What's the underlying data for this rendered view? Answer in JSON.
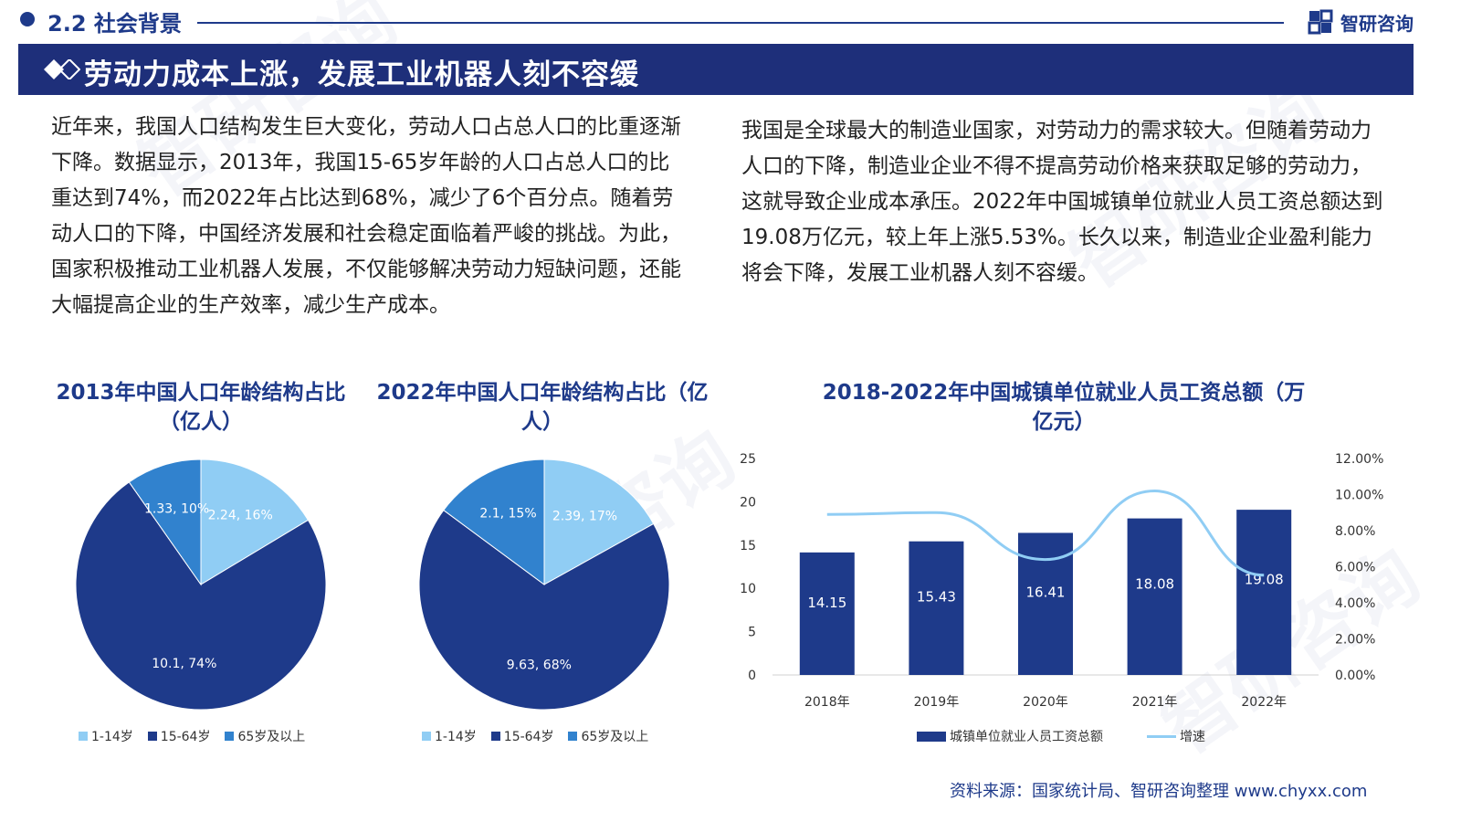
{
  "header": {
    "section_title": "2.2 社会背景",
    "brand_name": "智研咨询",
    "banner_title": "劳动力成本上涨，发展工业机器人刻不容缓"
  },
  "paragraphs": {
    "left": "近年来，我国人口结构发生巨大变化，劳动人口占总人口的比重逐渐下降。数据显示，2013年，我国15-65岁年龄的人口占总人口的比重达到74%，而2022年占比达到68%，减少了6个百分点。随着劳动人口的下降，中国经济发展和社会稳定面临着严峻的挑战。为此，国家积极推动工业机器人发展，不仅能够解决劳动力短缺问题，还能大幅提高企业的生产效率，减少生产成本。",
    "right": "我国是全球最大的制造业国家，对劳动力的需求较大。但随着劳动力人口的下降，制造业企业不得不提高劳动价格来获取足够的劳动力，这就导致企业成本承压。2022年中国城镇单位就业人员工资总额达到19.08万亿元，较上年上涨5.53%。长久以来，制造业企业盈利能力将会下降，发展工业机器人刻不容缓。"
  },
  "source": "资料来源：国家统计局、智研咨询整理  www.chyxx.com",
  "colors": {
    "navy": "#1e3a8a",
    "pie_light": "#90cdf4",
    "pie_dark": "#1e3a8a",
    "pie_mid": "#3182ce",
    "bar": "#1e3a8a",
    "line": "#90cdf4"
  },
  "chart_data": [
    {
      "type": "pie",
      "title": "2013年中国人口年龄结构占比（亿人）",
      "slices": [
        {
          "name": "1-14岁",
          "value": 2.24,
          "percent": 16,
          "label": "2.24, 16%"
        },
        {
          "name": "15-64岁",
          "value": 10.1,
          "percent": 74,
          "label": "10.1, 74%"
        },
        {
          "name": "65岁及以上",
          "value": 1.33,
          "percent": 10,
          "label": "1.33, 10%"
        }
      ],
      "legend": [
        "1-14岁",
        "15-64岁",
        "65岁及以上"
      ],
      "legend_position": "bottom"
    },
    {
      "type": "pie",
      "title": "2022年中国人口年龄结构占比（亿人）",
      "slices": [
        {
          "name": "1-14岁",
          "value": 2.39,
          "percent": 17,
          "label": "2.39, 17%"
        },
        {
          "name": "15-64岁",
          "value": 9.63,
          "percent": 68,
          "label": "9.63, 68%"
        },
        {
          "name": "65岁及以上",
          "value": 2.1,
          "percent": 15,
          "label": "2.1, 15%"
        }
      ],
      "legend": [
        "1-14岁",
        "15-64岁",
        "65岁及以上"
      ],
      "legend_position": "bottom"
    },
    {
      "type": "bar",
      "title": "2018-2022年中国城镇单位就业人员工资总额（万亿元）",
      "categories": [
        "2018年",
        "2019年",
        "2020年",
        "2021年",
        "2022年"
      ],
      "series": [
        {
          "name": "城镇单位就业人员工资总额",
          "type": "bar",
          "values": [
            14.15,
            15.43,
            16.41,
            18.08,
            19.08
          ],
          "labels": [
            "14.15",
            "15.43",
            "16.41",
            "18.08",
            "19.08"
          ]
        },
        {
          "name": "增速",
          "type": "line",
          "axis": "right",
          "values": [
            8.9,
            9.0,
            6.4,
            10.2,
            5.53
          ]
        }
      ],
      "ylim": [
        0,
        25
      ],
      "y_ticks": [
        "0",
        "5",
        "10",
        "15",
        "20",
        "25"
      ],
      "y2lim": [
        0,
        12
      ],
      "y2_ticks": [
        "0.00%",
        "2.00%",
        "4.00%",
        "6.00%",
        "8.00%",
        "10.00%",
        "12.00%"
      ],
      "grid": false,
      "legend_position": "bottom"
    }
  ]
}
